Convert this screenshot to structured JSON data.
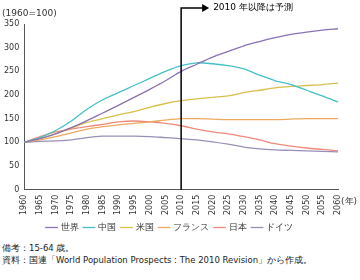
{
  "chart_data": {
    "type": "line",
    "ylabel": "(1960=100)",
    "xlabel": "(年)",
    "x": [
      1960,
      1965,
      1970,
      1975,
      1980,
      1985,
      1990,
      1995,
      2000,
      2005,
      2010,
      2015,
      2020,
      2025,
      2030,
      2035,
      2040,
      2045,
      2050,
      2055,
      2060
    ],
    "xlim": [
      1960,
      2060
    ],
    "xticks": [
      1960,
      1965,
      1970,
      1975,
      1980,
      1985,
      1990,
      1995,
      2000,
      2005,
      2010,
      2015,
      2020,
      2025,
      2030,
      2035,
      2040,
      2045,
      2050,
      2055,
      2060
    ],
    "ylim": [
      0,
      350
    ],
    "yticks": [
      0,
      50,
      100,
      150,
      200,
      250,
      300,
      350
    ],
    "grid": false,
    "legend": "bottom",
    "series": [
      {
        "name": "世界",
        "color": "#8a72b5",
        "values": [
          100,
          108,
          118,
          131,
          146,
          162,
          178,
          195,
          212,
          230,
          250,
          265,
          280,
          292,
          304,
          313,
          321,
          328,
          333,
          337,
          340
        ]
      },
      {
        "name": "中国",
        "color": "#45c0c9",
        "values": [
          100,
          110,
          125,
          145,
          170,
          190,
          205,
          220,
          235,
          250,
          262,
          268,
          266,
          262,
          255,
          242,
          230,
          222,
          210,
          198,
          185
        ]
      },
      {
        "name": "米国",
        "color": "#d8c04a",
        "values": [
          100,
          108,
          118,
          130,
          142,
          150,
          158,
          165,
          174,
          182,
          188,
          192,
          195,
          198,
          205,
          210,
          215,
          218,
          220,
          222,
          225
        ]
      },
      {
        "name": "フランス",
        "color": "#f0a860",
        "values": [
          100,
          105,
          112,
          120,
          128,
          133,
          137,
          140,
          143,
          147,
          150,
          150,
          149,
          148,
          148,
          148,
          148,
          149,
          150,
          150,
          150
        ]
      },
      {
        "name": "日本",
        "color": "#ee8a7a",
        "values": [
          100,
          112,
          122,
          128,
          133,
          138,
          143,
          145,
          143,
          140,
          135,
          128,
          122,
          118,
          112,
          105,
          97,
          92,
          88,
          85,
          82
        ]
      },
      {
        "name": "ドイツ",
        "color": "#9a8fb8",
        "values": [
          100,
          102,
          103,
          105,
          110,
          113,
          113,
          113,
          112,
          110,
          108,
          105,
          101,
          96,
          90,
          86,
          84,
          83,
          82,
          81,
          80
        ]
      }
    ],
    "annotations": [
      {
        "x": 2010,
        "text": "2010 年以降は予測"
      }
    ],
    "notes": [
      "備考：15-64 歳。",
      "資料：国連「World Population Prospects : The 2010 Revision」から作成。"
    ]
  }
}
